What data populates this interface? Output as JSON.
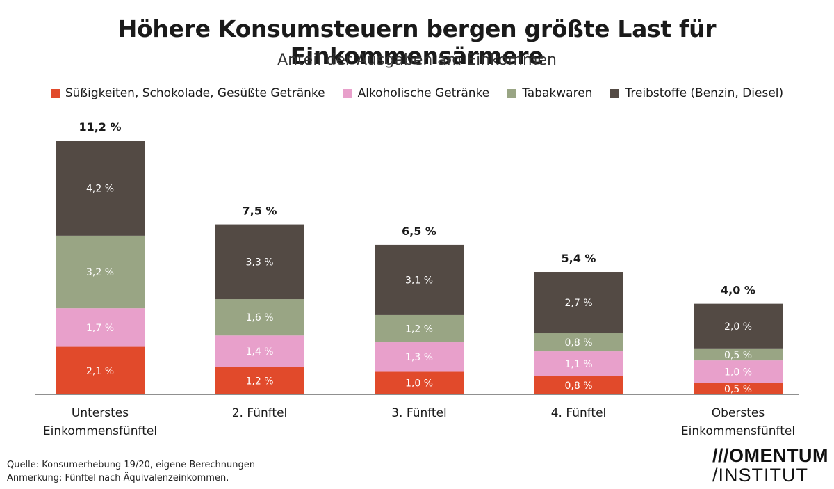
{
  "chart_data": {
    "type": "bar",
    "stacked": true,
    "title": "Höhere Konsumsteuern bergen größte Last für Einkommensärmere",
    "subtitle": "Anteil der Ausgaben am Einkommen",
    "categories": [
      [
        "Unterstes",
        "Einkommensfünftel"
      ],
      [
        "2. Fünftel"
      ],
      [
        "3. Fünftel"
      ],
      [
        "4. Fünftel"
      ],
      [
        "Oberstes",
        "Einkommensfünftel"
      ]
    ],
    "series": [
      {
        "name": "Süßigkeiten, Schokolade, Gesüßte Getränke",
        "color": "#e14a2b",
        "values": [
          2.1,
          1.2,
          1.0,
          0.8,
          0.5
        ],
        "labels": [
          "2,1 %",
          "1,2 %",
          "1,0 %",
          "0,8 %",
          "0,5 %"
        ]
      },
      {
        "name": "Alkoholische Getränke",
        "color": "#e8a0cb",
        "values": [
          1.7,
          1.4,
          1.3,
          1.1,
          1.0
        ],
        "labels": [
          "1,7 %",
          "1,4 %",
          "1,3 %",
          "1,1 %",
          "1,0 %"
        ]
      },
      {
        "name": "Tabakwaren",
        "color": "#99a584",
        "values": [
          3.2,
          1.6,
          1.2,
          0.8,
          0.5
        ],
        "labels": [
          "3,2 %",
          "1,6 %",
          "1,2 %",
          "0,8 %",
          "0,5 %"
        ]
      },
      {
        "name": "Treibstoffe (Benzin, Diesel)",
        "color": "#534a44",
        "values": [
          4.2,
          3.3,
          3.1,
          2.7,
          2.0
        ],
        "labels": [
          "4,2 %",
          "3,3 %",
          "3,1 %",
          "2,7 %",
          "2,0 %"
        ]
      }
    ],
    "totals": [
      11.2,
      7.5,
      6.5,
      5.4,
      4.0
    ],
    "total_labels": [
      "11,2 %",
      "7,5 %",
      "6,5 %",
      "5,4 %",
      "4,0 %"
    ],
    "ylim": [
      0,
      11.2
    ],
    "grid": false,
    "legend_position": "top"
  },
  "footer": {
    "source": "Quelle: Konsumerhebung 19/20, eigene Berechnungen",
    "note": "Anmerkung: Fünftel nach Äquivalenzeinkommen."
  },
  "logo": {
    "line1": "///OMENTUM",
    "line2": "/INSTITUT"
  }
}
